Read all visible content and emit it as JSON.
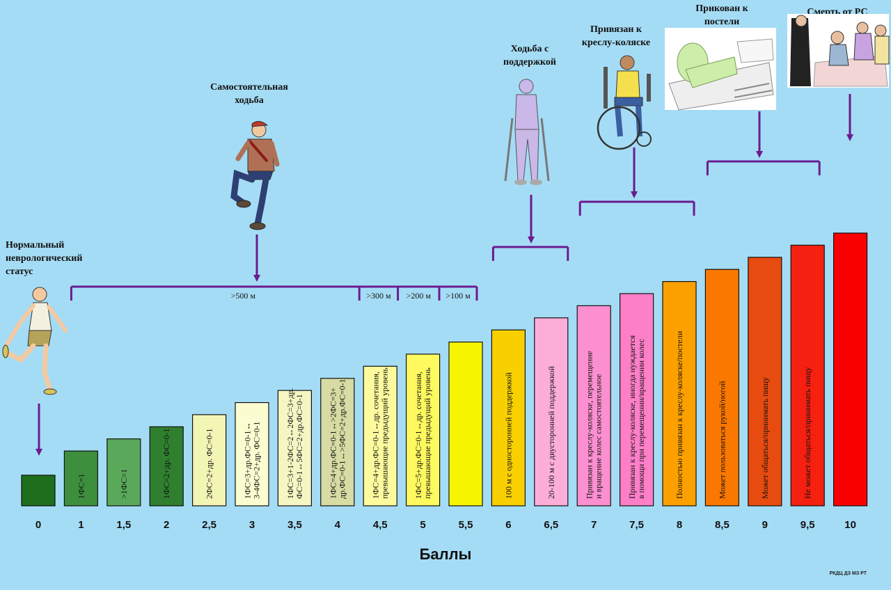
{
  "chart_data": {
    "type": "bar",
    "xlabel": "Баллы",
    "categories": [
      "0",
      "1",
      "1,5",
      "2",
      "2,5",
      "3",
      "3,5",
      "4",
      "4,5",
      "5",
      "5,5",
      "6",
      "6,5",
      "7",
      "7,5",
      "8",
      "8,5",
      "9",
      "9,5",
      "10"
    ],
    "values": [
      0,
      1,
      1.5,
      2,
      2.5,
      3,
      3.5,
      4,
      4.5,
      5,
      5.5,
      6,
      6.5,
      7,
      7.5,
      8,
      8.5,
      9,
      9.5,
      10
    ],
    "bar_colors": [
      "#1e6e1e",
      "#3d8f3d",
      "#5aa85a",
      "#2f7f2f",
      "#f3f5b5",
      "#fbfcd0",
      "#f6f6c4",
      "#d6dca3",
      "#fcfa9d",
      "#fdf95f",
      "#f7f400",
      "#f8d000",
      "#fcaed8",
      "#fc8fd0",
      "#fc7fc8",
      "#fca000",
      "#fb7800",
      "#e84b10",
      "#f52010",
      "#fb0000"
    ],
    "bar_labels": [
      [
        ""
      ],
      [
        "1ФС=1"
      ],
      [
        ">1ФС=1"
      ],
      [
        "1ФС=2+др. ФС=0-1"
      ],
      [
        "2ФС=2+др. ФС=0-1"
      ],
      [
        "1ФС=3+др.ФС=0-1↔",
        "3-4ФС=2+др. ФС=0-1"
      ],
      [
        "1ФС=3+1-2ФС=2↔2ФС=3+др.",
        "ФС=0-1↔5ФС=2+др.ФС=0-1"
      ],
      [
        "1ФС=4+др.ФС=0-1↔>2ФС=3+",
        "др.ФС=0-1↔>5ФС=2+др.ФС=0-1"
      ],
      [
        "1ФС=4+др.ФС=0-1↔др. сочетания,",
        "превышающие предыдущий уровень"
      ],
      [
        "1ФС=5+др.ФС=0-1↔др. сочетания,",
        "превышающие предыдущий уровень"
      ],
      [
        ""
      ],
      [
        "100 м с односторонней поддержкой"
      ],
      [
        "20-100 м с двусторонней поддержкой"
      ],
      [
        "Привязан к креслу-коляске, перемещение",
        "и вращение колес самостоятельное"
      ],
      [
        "Привязан к креслу-коляске, иногда нуждается",
        "в помощи при перемещении/вращении колес"
      ],
      [
        "Полностью привязан к креслу-коляске/постели"
      ],
      [
        "Может пользоваться рукой/ногой"
      ],
      [
        "Может общаться/принимать пищу"
      ],
      [
        "Не может общаться/принимать пищу"
      ],
      [
        ""
      ]
    ],
    "distance_labels": [
      ">500 м",
      ">300 м",
      ">200 м",
      ">100 м"
    ],
    "stages": [
      {
        "lines": [
          "Нормальный",
          "неврологический",
          "статус"
        ],
        "icon": "running-man-icon"
      },
      {
        "lines": [
          "Самостоятельная",
          "ходьба"
        ],
        "icon": "walking-man-icon"
      },
      {
        "lines": [
          "Ходьба с",
          "поддержкой"
        ],
        "icon": "crutches-man-icon"
      },
      {
        "lines": [
          "Привязан к",
          "креслу-коляске"
        ],
        "icon": "wheelchair-man-icon"
      },
      {
        "lines": [
          "Прикован к",
          "постели"
        ],
        "icon": "bedridden-patient-icon"
      },
      {
        "lines": [
          "Смерть от РС"
        ],
        "icon": "deathbed-scene-icon"
      }
    ],
    "credit": "РКДЦ ДЗ МЗ РТ"
  },
  "colors": {
    "background": "#a5dcf5",
    "bracket": "#6a1b8f",
    "bar_stroke": "#111111"
  }
}
